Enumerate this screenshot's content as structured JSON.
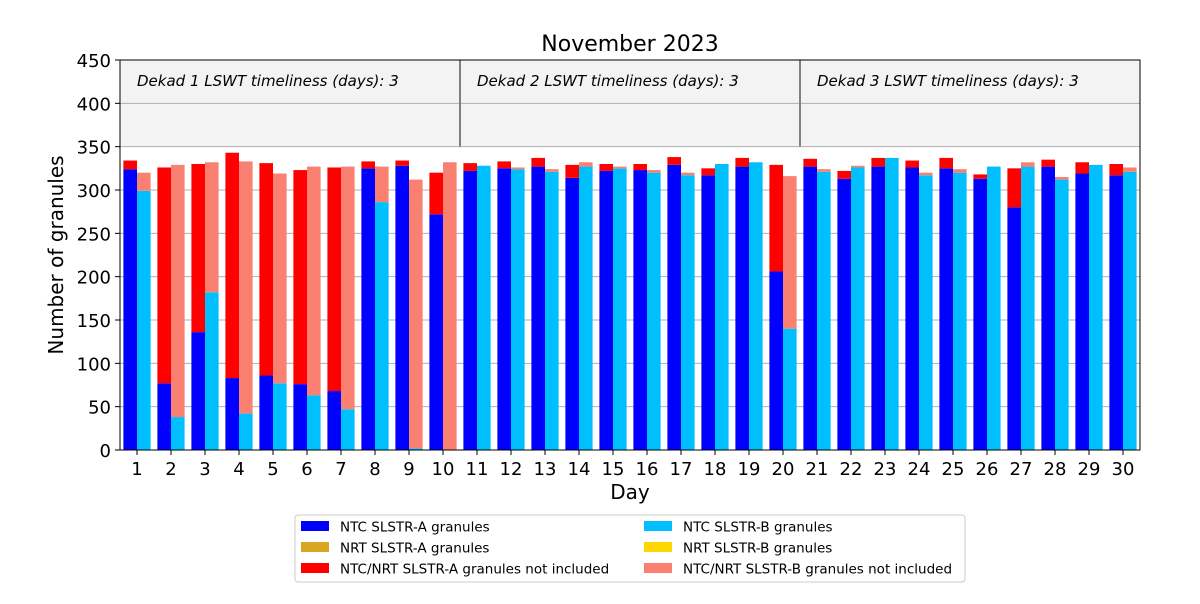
{
  "chart_data": {
    "type": "bar",
    "title": "November 2023",
    "xlabel": "Day",
    "ylabel": "Number of granules",
    "ylim": [
      0,
      450
    ],
    "yticks": [
      0,
      50,
      100,
      150,
      200,
      250,
      300,
      350,
      400,
      450
    ],
    "categories": [
      "1",
      "2",
      "3",
      "4",
      "5",
      "6",
      "7",
      "8",
      "9",
      "10",
      "11",
      "12",
      "13",
      "14",
      "15",
      "16",
      "17",
      "18",
      "19",
      "20",
      "21",
      "22",
      "23",
      "24",
      "25",
      "26",
      "27",
      "28",
      "29",
      "30"
    ],
    "grid": true,
    "legend_position": "bottom-center",
    "annotation_band": [
      350,
      450
    ],
    "dekad_dividers_after_day": [
      10,
      20
    ],
    "dekad_labels": [
      "Dekad 1 LSWT timeliness (days): 3",
      "Dekad 2 LSWT timeliness (days): 3",
      "Dekad 3 LSWT timeliness (days): 3"
    ],
    "series": [
      {
        "name": "NTC SLSTR-A granules",
        "color": "#0000ff",
        "sensor": "A",
        "kind": "ntc",
        "values": [
          324,
          77,
          136,
          83,
          86,
          76,
          68,
          325,
          328,
          272,
          322,
          325,
          327,
          314,
          322,
          323,
          329,
          317,
          327,
          206,
          327,
          313,
          327,
          326,
          325,
          313,
          280,
          327,
          319,
          317
        ]
      },
      {
        "name": "NRT SLSTR-A granules",
        "color": "#daa520",
        "sensor": "A",
        "kind": "nrt",
        "values": [
          0,
          0,
          0,
          0,
          0,
          0,
          0,
          0,
          0,
          0,
          0,
          0,
          0,
          0,
          0,
          0,
          0,
          0,
          0,
          0,
          0,
          0,
          0,
          0,
          0,
          0,
          0,
          0,
          0,
          0
        ]
      },
      {
        "name": "NTC/NRT SLSTR-A granules not included",
        "color": "#ff0000",
        "sensor": "A",
        "kind": "excluded",
        "values": [
          10,
          249,
          194,
          260,
          245,
          247,
          258,
          8,
          6,
          48,
          9,
          8,
          10,
          15,
          8,
          7,
          9,
          8,
          10,
          123,
          9,
          9,
          10,
          8,
          12,
          5,
          45,
          8,
          13,
          13
        ]
      },
      {
        "name": "NTC SLSTR-B granules",
        "color": "#00bfff",
        "sensor": "B",
        "kind": "ntc",
        "values": [
          299,
          38,
          182,
          42,
          77,
          63,
          47,
          286,
          2,
          0,
          328,
          324,
          321,
          327,
          325,
          320,
          317,
          330,
          332,
          140,
          321,
          326,
          337,
          317,
          320,
          327,
          327,
          312,
          329,
          321
        ]
      },
      {
        "name": "NRT SLSTR-B granules",
        "color": "#ffd700",
        "sensor": "B",
        "kind": "nrt",
        "values": [
          0,
          0,
          0,
          0,
          0,
          0,
          0,
          0,
          0,
          0,
          0,
          0,
          0,
          0,
          0,
          0,
          0,
          0,
          0,
          0,
          0,
          0,
          0,
          0,
          0,
          0,
          0,
          0,
          0,
          0
        ]
      },
      {
        "name": "NTC/NRT SLSTR-B granules not included",
        "color": "#fa8072",
        "sensor": "B",
        "kind": "excluded",
        "values": [
          21,
          291,
          150,
          291,
          242,
          264,
          280,
          41,
          310,
          332,
          0,
          2,
          3,
          5,
          2,
          3,
          3,
          0,
          0,
          176,
          3,
          2,
          0,
          3,
          4,
          0,
          5,
          3,
          0,
          5
        ]
      }
    ]
  }
}
